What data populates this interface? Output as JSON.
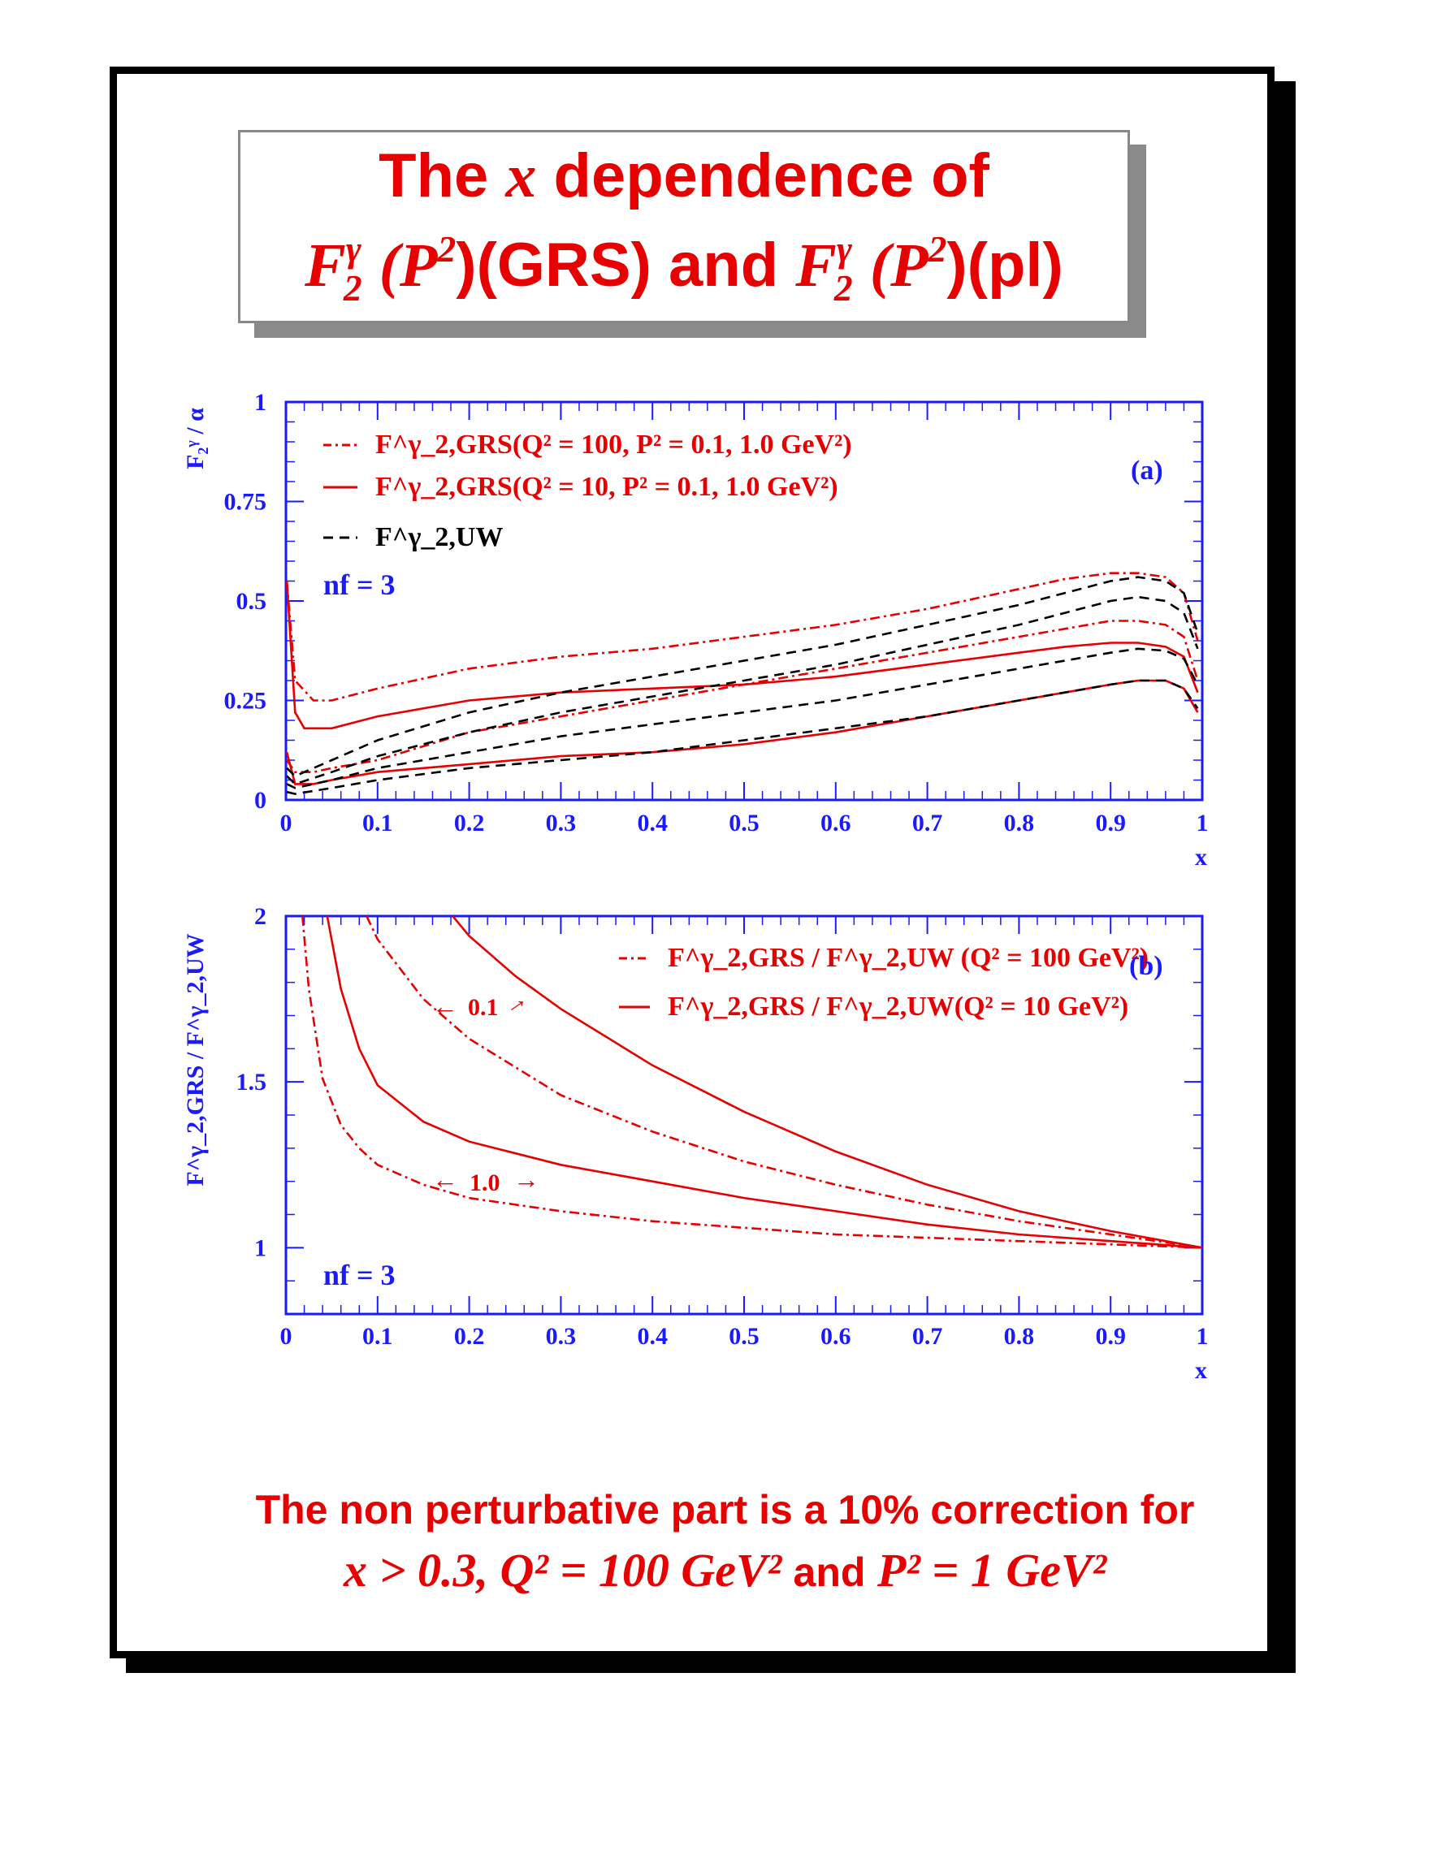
{
  "title": {
    "line1_prefix": "The",
    "line1_var": "x",
    "line1_suffix": "dependence of",
    "line2_f": "F",
    "line2_gamma": "γ",
    "line2_two": "2",
    "line2_p": "(P",
    "line2_sq": "2",
    "line2_grs": ")(GRS) and",
    "line2_f2": "F",
    "line2_gamma2": "γ",
    "line2_two2": "2",
    "line2_p2": "(P",
    "line2_sq2": "2",
    "line2_pl": ")(pl)"
  },
  "footer": {
    "line1": "The non perturbative part is a 10% correction for",
    "line2_math": "x > 0.3, Q² = 100 GeV²",
    "line2_and": "and",
    "line2_math2": "P² = 1 GeV²"
  },
  "colors": {
    "red": "#e60000",
    "blue": "#1a1aff",
    "black": "#000000"
  },
  "chart_data": [
    {
      "type": "line",
      "panel_label": "(a)",
      "ylabel": "F₂ᵞ / α",
      "xlabel": "x",
      "xlim": [
        0,
        1
      ],
      "ylim": [
        0,
        1
      ],
      "xticks": [
        "0",
        "0.1",
        "0.2",
        "0.3",
        "0.4",
        "0.5",
        "0.6",
        "0.7",
        "0.8",
        "0.9",
        "1"
      ],
      "yticks": [
        "0",
        "0.25",
        "0.5",
        "0.75",
        "1"
      ],
      "annotation": "nf = 3",
      "legend": [
        {
          "style": "dashdot",
          "color": "red",
          "label": "F^γ_2,GRS(Q² = 100, P² = 0.1, 1.0 GeV²)"
        },
        {
          "style": "solid",
          "color": "red",
          "label": "F^γ_2,GRS(Q² = 10, P² = 0.1, 1.0 GeV²)"
        },
        {
          "style": "dashed",
          "color": "black",
          "label": "F^γ_2,UW"
        }
      ],
      "series": [
        {
          "style": "dashdot",
          "color": "red",
          "x": [
            0.001,
            0.01,
            0.03,
            0.05,
            0.1,
            0.2,
            0.3,
            0.4,
            0.5,
            0.6,
            0.7,
            0.8,
            0.85,
            0.9,
            0.93,
            0.96,
            0.98,
            0.995
          ],
          "y": [
            0.55,
            0.3,
            0.25,
            0.25,
            0.28,
            0.33,
            0.36,
            0.38,
            0.41,
            0.44,
            0.48,
            0.53,
            0.555,
            0.57,
            0.57,
            0.56,
            0.52,
            0.4
          ]
        },
        {
          "style": "dashdot",
          "color": "red",
          "x": [
            0.001,
            0.01,
            0.03,
            0.05,
            0.1,
            0.2,
            0.3,
            0.4,
            0.5,
            0.6,
            0.7,
            0.8,
            0.85,
            0.9,
            0.93,
            0.96,
            0.98,
            0.995
          ],
          "y": [
            0.1,
            0.07,
            0.07,
            0.08,
            0.1,
            0.17,
            0.21,
            0.25,
            0.29,
            0.33,
            0.37,
            0.41,
            0.43,
            0.45,
            0.45,
            0.44,
            0.41,
            0.3
          ]
        },
        {
          "style": "solid",
          "color": "red",
          "x": [
            0.001,
            0.01,
            0.02,
            0.05,
            0.1,
            0.2,
            0.3,
            0.4,
            0.5,
            0.6,
            0.7,
            0.8,
            0.85,
            0.9,
            0.93,
            0.96,
            0.98,
            0.995
          ],
          "y": [
            0.55,
            0.22,
            0.18,
            0.18,
            0.21,
            0.25,
            0.27,
            0.28,
            0.29,
            0.31,
            0.34,
            0.37,
            0.385,
            0.395,
            0.395,
            0.385,
            0.36,
            0.27
          ]
        },
        {
          "style": "solid",
          "color": "red",
          "x": [
            0.001,
            0.01,
            0.03,
            0.05,
            0.1,
            0.2,
            0.3,
            0.4,
            0.5,
            0.6,
            0.7,
            0.8,
            0.85,
            0.9,
            0.93,
            0.96,
            0.98,
            0.995
          ],
          "y": [
            0.12,
            0.04,
            0.04,
            0.05,
            0.07,
            0.09,
            0.11,
            0.12,
            0.14,
            0.17,
            0.21,
            0.25,
            0.27,
            0.29,
            0.3,
            0.3,
            0.28,
            0.22
          ]
        },
        {
          "style": "dashed",
          "color": "black",
          "x": [
            0.001,
            0.01,
            0.05,
            0.1,
            0.2,
            0.3,
            0.4,
            0.5,
            0.6,
            0.7,
            0.8,
            0.85,
            0.9,
            0.93,
            0.96,
            0.98,
            0.995
          ],
          "y": [
            0.08,
            0.06,
            0.1,
            0.15,
            0.22,
            0.27,
            0.31,
            0.35,
            0.39,
            0.44,
            0.49,
            0.52,
            0.55,
            0.56,
            0.55,
            0.52,
            0.42
          ]
        },
        {
          "style": "dashed",
          "color": "black",
          "x": [
            0.001,
            0.01,
            0.05,
            0.1,
            0.2,
            0.3,
            0.4,
            0.5,
            0.6,
            0.7,
            0.8,
            0.85,
            0.9,
            0.93,
            0.96,
            0.98,
            0.995
          ],
          "y": [
            0.06,
            0.04,
            0.07,
            0.11,
            0.17,
            0.22,
            0.26,
            0.3,
            0.34,
            0.39,
            0.44,
            0.47,
            0.5,
            0.51,
            0.5,
            0.47,
            0.38
          ]
        },
        {
          "style": "dashed",
          "color": "black",
          "x": [
            0.001,
            0.01,
            0.05,
            0.1,
            0.2,
            0.3,
            0.4,
            0.5,
            0.6,
            0.7,
            0.8,
            0.85,
            0.9,
            0.93,
            0.96,
            0.98,
            0.995
          ],
          "y": [
            0.04,
            0.03,
            0.05,
            0.08,
            0.12,
            0.16,
            0.19,
            0.22,
            0.25,
            0.29,
            0.33,
            0.35,
            0.37,
            0.38,
            0.375,
            0.355,
            0.29
          ]
        },
        {
          "style": "dashed",
          "color": "black",
          "x": [
            0.001,
            0.01,
            0.05,
            0.1,
            0.2,
            0.3,
            0.4,
            0.5,
            0.6,
            0.7,
            0.8,
            0.85,
            0.9,
            0.93,
            0.96,
            0.98,
            0.995
          ],
          "y": [
            0.02,
            0.015,
            0.03,
            0.05,
            0.08,
            0.1,
            0.12,
            0.15,
            0.18,
            0.21,
            0.25,
            0.27,
            0.29,
            0.3,
            0.3,
            0.28,
            0.23
          ]
        }
      ]
    },
    {
      "type": "line",
      "panel_label": "(b)",
      "ylabel": "F^γ_2,GRS / F^γ_2,UW",
      "xlabel": "x",
      "xlim": [
        0,
        1
      ],
      "ylim": [
        0.8,
        2
      ],
      "xticks": [
        "0",
        "0.1",
        "0.2",
        "0.3",
        "0.4",
        "0.5",
        "0.6",
        "0.7",
        "0.8",
        "0.9",
        "1"
      ],
      "yticks": [
        "1",
        "1.5",
        "2"
      ],
      "annotation": "nf = 3",
      "arrow_labels": [
        "0.1",
        "1.0"
      ],
      "legend": [
        {
          "style": "dashdot",
          "color": "red",
          "label": "F^γ_2,GRS / F^γ_2,UW (Q² = 100 GeV²)"
        },
        {
          "style": "solid",
          "color": "red",
          "label": "F^γ_2,GRS / F^γ_2,UW(Q² =  10 GeV²)"
        }
      ],
      "series": [
        {
          "style": "solid",
          "color": "red",
          "x": [
            0.182,
            0.2,
            0.25,
            0.3,
            0.4,
            0.5,
            0.6,
            0.7,
            0.8,
            0.9,
            1.0
          ],
          "y": [
            2.0,
            1.94,
            1.82,
            1.72,
            1.55,
            1.41,
            1.29,
            1.19,
            1.11,
            1.05,
            1.0
          ]
        },
        {
          "style": "dashdot",
          "color": "red",
          "x": [
            0.088,
            0.1,
            0.15,
            0.2,
            0.3,
            0.4,
            0.5,
            0.6,
            0.7,
            0.8,
            0.9,
            1.0
          ],
          "y": [
            2.0,
            1.93,
            1.75,
            1.63,
            1.46,
            1.35,
            1.26,
            1.19,
            1.13,
            1.08,
            1.04,
            1.0
          ]
        },
        {
          "style": "solid",
          "color": "red",
          "x": [
            0.045,
            0.06,
            0.08,
            0.1,
            0.15,
            0.2,
            0.3,
            0.4,
            0.5,
            0.6,
            0.7,
            0.8,
            0.9,
            1.0
          ],
          "y": [
            2.0,
            1.78,
            1.6,
            1.49,
            1.38,
            1.32,
            1.25,
            1.2,
            1.15,
            1.11,
            1.07,
            1.04,
            1.02,
            1.0
          ]
        },
        {
          "style": "dashdot",
          "color": "red",
          "x": [
            0.018,
            0.025,
            0.04,
            0.06,
            0.08,
            0.1,
            0.15,
            0.2,
            0.3,
            0.4,
            0.5,
            0.6,
            0.7,
            0.8,
            0.9,
            1.0
          ],
          "y": [
            2.0,
            1.78,
            1.51,
            1.37,
            1.3,
            1.25,
            1.19,
            1.15,
            1.11,
            1.08,
            1.06,
            1.04,
            1.03,
            1.02,
            1.01,
            1.0
          ]
        }
      ]
    }
  ]
}
